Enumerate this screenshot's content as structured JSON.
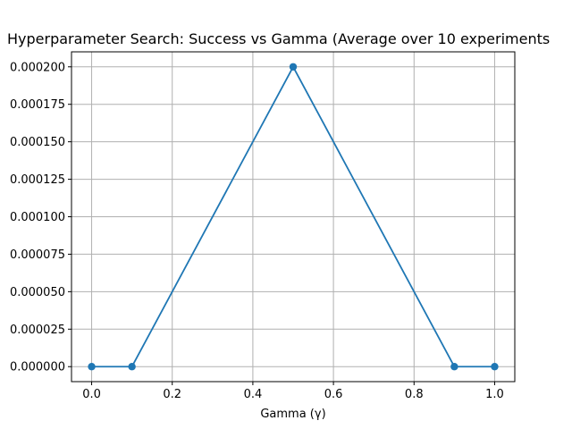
{
  "chart_data": {
    "type": "line",
    "title": "Hyperparameter Search: Success vs Gamma (Average over 10 experiments",
    "xlabel": "Gamma (γ)",
    "ylabel": "",
    "x": [
      0.0,
      0.1,
      0.5,
      0.9,
      1.0
    ],
    "series": [
      {
        "values": [
          0.0,
          0.0,
          0.0002,
          0.0,
          0.0
        ]
      }
    ],
    "xlim": [
      -0.05,
      1.05
    ],
    "ylim": [
      -1e-05,
      0.00021
    ],
    "x_ticks": [
      0.0,
      0.2,
      0.4,
      0.6,
      0.8,
      1.0
    ],
    "x_tick_labels": [
      "0.0",
      "0.2",
      "0.4",
      "0.6",
      "0.8",
      "1.0"
    ],
    "y_ticks": [
      0.0,
      2.5e-05,
      5e-05,
      7.5e-05,
      0.0001,
      0.000125,
      0.00015,
      0.000175,
      0.0002
    ],
    "y_tick_labels": [
      "0.000000",
      "0.000025",
      "0.000050",
      "0.000075",
      "0.000100",
      "0.000125",
      "0.000150",
      "0.000175",
      "0.000200"
    ],
    "grid": true,
    "markers": true,
    "line_color": "#1f77b4",
    "grid_color": "#b0b0b0"
  }
}
